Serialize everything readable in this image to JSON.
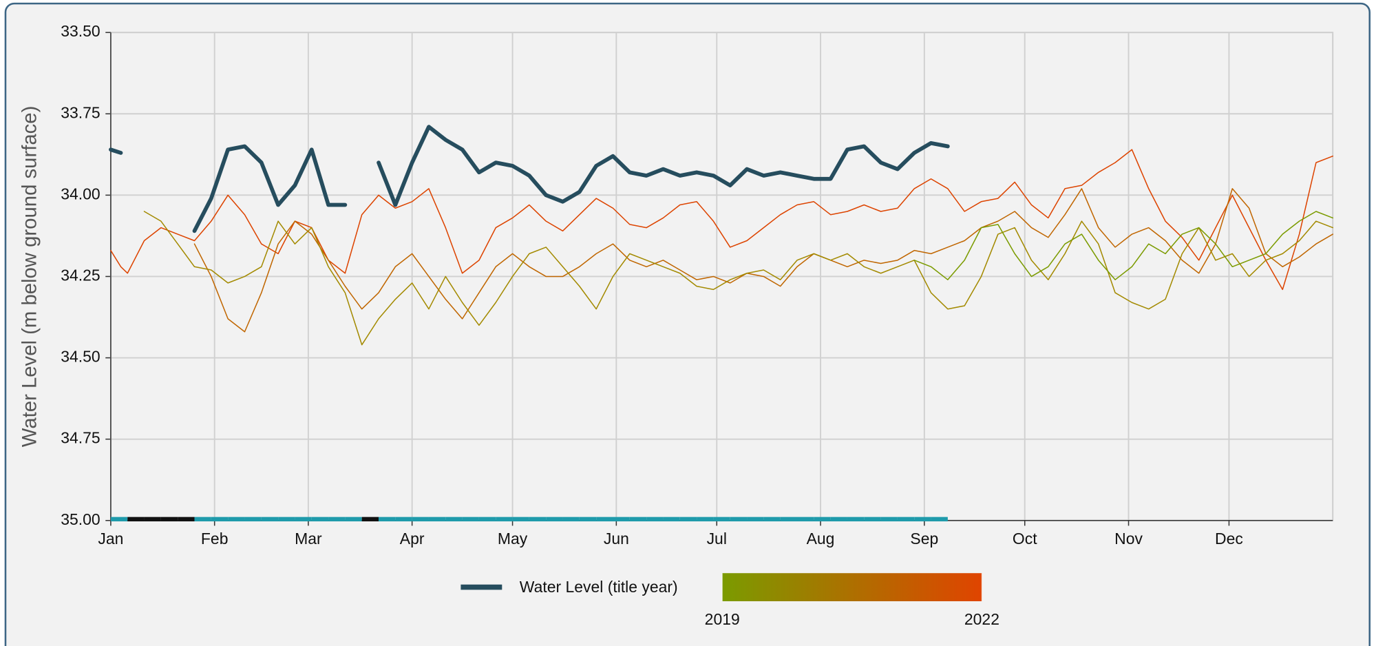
{
  "chart_data": {
    "type": "line",
    "y_label": "Water Level (m below ground surface)",
    "x": [
      0,
      3,
      5,
      10,
      15,
      20,
      25,
      30,
      35,
      40,
      45,
      50,
      55,
      60,
      65,
      70,
      75,
      80,
      85,
      90,
      95,
      100,
      105,
      110,
      115,
      120,
      125,
      130,
      135,
      140,
      145,
      150,
      155,
      160,
      165,
      170,
      175,
      180,
      185,
      190,
      195,
      200,
      205,
      210,
      215,
      220,
      225,
      230,
      235,
      240,
      245,
      250,
      255,
      260,
      265,
      270,
      275,
      280,
      285,
      290,
      295,
      300,
      305,
      310,
      315,
      320,
      325,
      330,
      335,
      340,
      345,
      350,
      355,
      360,
      365
    ],
    "xlim": [
      0,
      365
    ],
    "xticks": [
      {
        "value": 0,
        "label": "Jan"
      },
      {
        "value": 31,
        "label": "Feb"
      },
      {
        "value": 59,
        "label": "Mar"
      },
      {
        "value": 90,
        "label": "Apr"
      },
      {
        "value": 120,
        "label": "May"
      },
      {
        "value": 151,
        "label": "Jun"
      },
      {
        "value": 181,
        "label": "Jul"
      },
      {
        "value": 212,
        "label": "Aug"
      },
      {
        "value": 243,
        "label": "Sep"
      },
      {
        "value": 273,
        "label": "Oct"
      },
      {
        "value": 304,
        "label": "Nov"
      },
      {
        "value": 334,
        "label": "Dec"
      }
    ],
    "ylim": [
      33.5,
      35
    ],
    "y_inverted": true,
    "yticks": [
      {
        "value": 33.5,
        "label": "33.50"
      },
      33.75,
      {
        "value": 34,
        "label": "34.00"
      },
      34.25,
      {
        "value": 34.5,
        "label": "34.50"
      },
      34.75,
      {
        "value": 35,
        "label": "35.00"
      }
    ],
    "grid": true,
    "series": [
      {
        "name": "Water Level (title year)",
        "color": "#264d5e",
        "values": [
          33.86,
          33.87,
          null,
          null,
          null,
          null,
          34.11,
          34.01,
          33.86,
          33.85,
          33.9,
          34.03,
          33.97,
          33.86,
          34.03,
          34.03,
          null,
          33.9,
          34.03,
          33.9,
          33.79,
          33.83,
          33.86,
          33.93,
          33.9,
          33.91,
          33.94,
          34.0,
          34.02,
          33.99,
          33.91,
          33.88,
          33.93,
          33.94,
          33.92,
          33.94,
          33.93,
          33.94,
          33.97,
          33.92,
          33.94,
          33.93,
          33.94,
          33.95,
          33.95,
          33.86,
          33.85,
          33.9,
          33.92,
          33.87,
          33.84,
          33.85,
          null,
          null,
          null,
          null,
          null,
          null,
          null,
          null,
          null,
          null,
          null,
          null,
          null,
          null,
          null,
          null,
          null,
          null,
          null,
          null,
          null,
          null,
          null
        ]
      },
      {
        "color": "#7b9b00",
        "values": [
          null,
          null,
          null,
          null,
          null,
          null,
          null,
          null,
          null,
          null,
          null,
          null,
          null,
          null,
          null,
          null,
          null,
          null,
          null,
          null,
          null,
          null,
          null,
          null,
          null,
          null,
          null,
          null,
          null,
          null,
          null,
          null,
          null,
          null,
          null,
          null,
          null,
          null,
          null,
          null,
          null,
          null,
          null,
          null,
          null,
          null,
          null,
          null,
          null,
          34.2,
          34.22,
          34.26,
          34.2,
          34.1,
          34.09,
          34.18,
          34.25,
          34.22,
          34.15,
          34.12,
          34.2,
          34.26,
          34.22,
          34.15,
          34.18,
          34.12,
          34.1,
          34.15,
          34.22,
          34.2,
          34.18,
          34.12,
          34.08,
          34.05,
          34.07
        ]
      },
      {
        "color": "#a38a00",
        "values": [
          null,
          null,
          null,
          34.05,
          34.08,
          34.15,
          34.22,
          34.23,
          34.27,
          34.25,
          34.22,
          34.08,
          34.15,
          34.1,
          34.22,
          34.3,
          34.46,
          34.38,
          34.32,
          34.27,
          34.35,
          34.25,
          34.33,
          34.4,
          34.33,
          34.25,
          34.18,
          34.16,
          34.22,
          34.28,
          34.35,
          34.25,
          34.18,
          34.2,
          34.22,
          34.24,
          34.28,
          34.29,
          34.26,
          34.24,
          34.23,
          34.26,
          34.2,
          34.18,
          34.2,
          34.18,
          34.22,
          34.24,
          34.22,
          34.2,
          34.3,
          34.35,
          34.34,
          34.25,
          34.12,
          34.1,
          34.2,
          34.26,
          34.18,
          34.08,
          34.15,
          34.3,
          34.33,
          34.35,
          34.32,
          34.18,
          34.1,
          34.2,
          34.18,
          34.25,
          34.2,
          34.18,
          34.14,
          34.08,
          34.1
        ]
      },
      {
        "color": "#c06600",
        "values": [
          null,
          null,
          null,
          null,
          null,
          null,
          34.15,
          34.25,
          34.38,
          34.42,
          34.3,
          34.15,
          34.08,
          34.12,
          34.2,
          34.28,
          34.35,
          34.3,
          34.22,
          34.18,
          34.25,
          34.32,
          34.38,
          34.3,
          34.22,
          34.18,
          34.22,
          34.25,
          34.25,
          34.22,
          34.18,
          34.15,
          34.2,
          34.22,
          34.2,
          34.23,
          34.26,
          34.25,
          34.27,
          34.24,
          34.25,
          34.28,
          34.22,
          34.18,
          34.2,
          34.22,
          34.2,
          34.21,
          34.2,
          34.17,
          34.18,
          34.16,
          34.14,
          34.1,
          34.08,
          34.05,
          34.1,
          34.13,
          34.06,
          33.98,
          34.1,
          34.16,
          34.12,
          34.1,
          34.14,
          34.2,
          34.24,
          34.15,
          33.98,
          34.04,
          34.18,
          34.22,
          34.19,
          34.15,
          34.12
        ]
      },
      {
        "color": "#dd4400",
        "values": [
          34.17,
          34.22,
          34.24,
          34.14,
          34.1,
          34.12,
          34.14,
          34.08,
          34.0,
          34.06,
          34.15,
          34.18,
          34.08,
          34.1,
          34.2,
          34.24,
          34.06,
          34.0,
          34.04,
          34.02,
          33.98,
          34.1,
          34.24,
          34.2,
          34.1,
          34.07,
          34.03,
          34.08,
          34.11,
          34.06,
          34.01,
          34.04,
          34.09,
          34.1,
          34.07,
          34.03,
          34.02,
          34.08,
          34.16,
          34.14,
          34.1,
          34.06,
          34.03,
          34.02,
          34.06,
          34.05,
          34.03,
          34.05,
          34.04,
          33.98,
          33.95,
          33.98,
          34.05,
          34.02,
          34.01,
          33.96,
          34.03,
          34.07,
          33.98,
          33.97,
          33.93,
          33.9,
          33.86,
          33.98,
          34.08,
          34.13,
          34.2,
          34.1,
          34.0,
          34.1,
          34.2,
          34.29,
          34.12,
          33.9,
          33.88
        ]
      }
    ],
    "coverage_colors": {
      "present": "#1f9bab",
      "missing": "#111111"
    },
    "colorbar": {
      "range": [
        2019,
        2022
      ],
      "ticks": [
        2019,
        2022
      ],
      "colors": [
        "#7b9b00",
        "#e04400"
      ]
    }
  }
}
